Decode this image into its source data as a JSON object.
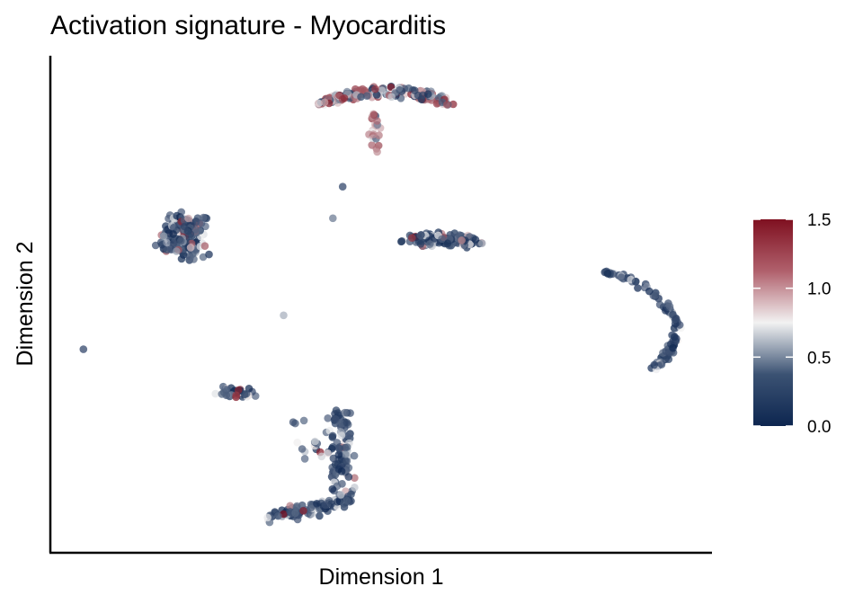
{
  "chart_data": {
    "type": "scatter",
    "title": "Activation signature - Myocarditis",
    "xlabel": "Dimension 1",
    "ylabel": "Dimension 2",
    "xlim": [
      0,
      10
    ],
    "ylim": [
      0,
      10
    ],
    "x_ticks_shown": false,
    "y_ticks_shown": false,
    "grid": false,
    "colorbar": {
      "placement": "right",
      "min": 0.0,
      "max": 1.5,
      "ticks": [
        "0.0",
        "0.5",
        "1.0",
        "1.5"
      ],
      "tick_values": [
        0.0,
        0.5,
        1.0,
        1.5
      ],
      "colors": {
        "low": "#0d2650",
        "mid": "#f2f2f2",
        "high": "#7f1020"
      },
      "midpoint": 0.75
    },
    "clusters": [
      {
        "cx": 5.05,
        "cy": 9.35,
        "n": 190,
        "shape": "arc",
        "rx": 0.95,
        "ry": 0.35,
        "high_frac": 0.5,
        "note": "top umbrella cluster"
      },
      {
        "cx": 1.95,
        "cy": 6.45,
        "n": 230,
        "shape": "blob",
        "rx": 0.55,
        "ry": 0.8,
        "high_frac": 0.08
      },
      {
        "cx": 5.95,
        "cy": 6.35,
        "n": 160,
        "shape": "blob",
        "rx": 0.95,
        "ry": 0.22,
        "high_frac": 0.05
      },
      {
        "cx": 9.1,
        "cy": 4.7,
        "n": 110,
        "shape": "crescent",
        "rx": 0.55,
        "ry": 1.0,
        "high_frac": 0.0
      },
      {
        "cx": 4.1,
        "cy": 1.5,
        "n": 220,
        "shape": "hook",
        "rx": 1.1,
        "ry": 1.2,
        "high_frac": 0.03
      },
      {
        "cx": 2.8,
        "cy": 3.2,
        "n": 45,
        "shape": "blob",
        "rx": 0.45,
        "ry": 0.2,
        "high_frac": 0.05
      }
    ]
  }
}
